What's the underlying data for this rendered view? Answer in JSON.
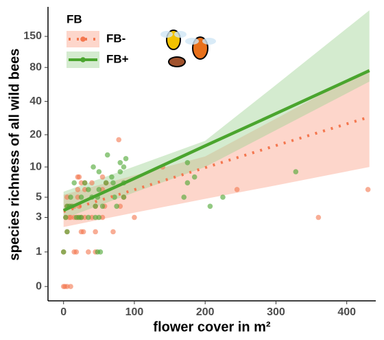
{
  "chart_data": {
    "type": "scatter",
    "x_label": "flower cover in m²",
    "y_label": "species richness of all wild bees",
    "xlim": [
      -22,
      441
    ],
    "ylim": [
      -0.25,
      272
    ],
    "yscale": "log1p",
    "xticks": [
      0,
      100,
      200,
      300,
      400
    ],
    "yticks": [
      0,
      1,
      3,
      5,
      10,
      20,
      40,
      80,
      150
    ],
    "legend": {
      "title": "FB",
      "position": "top-left"
    },
    "series": [
      {
        "name": "FB-",
        "color": "#f4774f",
        "band_color": "#fba58c",
        "line_style": "dotted",
        "x": [
          0,
          2,
          5,
          10,
          0,
          15,
          18,
          35,
          45,
          5,
          25,
          28,
          45,
          70,
          3,
          8,
          10,
          15,
          20,
          25,
          30,
          40,
          55,
          100,
          360,
          5,
          10,
          15,
          22,
          45,
          58,
          80,
          5,
          20,
          85,
          20,
          30,
          55,
          245,
          430,
          25,
          30,
          40,
          60,
          20,
          22,
          55,
          140,
          78
        ],
        "values": [
          0,
          0,
          0,
          0,
          1,
          1,
          1,
          1,
          1,
          2,
          2,
          2,
          2,
          2,
          3,
          3,
          3,
          3,
          3,
          3,
          3,
          3,
          3,
          3,
          3,
          4,
          4,
          4,
          4,
          4,
          4,
          4,
          5,
          5,
          5,
          6,
          6,
          6,
          6,
          6,
          7,
          7,
          7,
          7,
          8,
          8,
          8,
          10,
          18
        ],
        "fit": {
          "x": [
            0,
            100,
            200,
            300,
            432
          ],
          "values": [
            3.5,
            5.97,
            9.85,
            15.9,
            29
          ],
          "lower": [
            2.3,
            3.4,
            4.8,
            6.6,
            10
          ],
          "upper": [
            5.3,
            8.3,
            12.6,
            28,
            78
          ]
        }
      },
      {
        "name": "FB+",
        "color": "#4aa52e",
        "band_color": "#9fd394",
        "line_style": "solid",
        "x": [
          0,
          48,
          52,
          5,
          3,
          18,
          22,
          25,
          35,
          45,
          50,
          5,
          8,
          12,
          45,
          55,
          75,
          207,
          10,
          25,
          40,
          48,
          72,
          85,
          170,
          225,
          35,
          50,
          15,
          30,
          60,
          70,
          85,
          175,
          68,
          185,
          50,
          80,
          328,
          42,
          85,
          175,
          80,
          88,
          62
        ],
        "values": [
          1,
          1,
          1,
          2,
          3,
          3,
          3,
          3,
          3,
          3,
          3,
          4,
          4,
          4,
          4,
          4,
          4,
          4,
          5,
          5,
          5,
          5,
          5,
          5,
          5,
          5,
          6,
          6,
          7,
          7,
          7,
          7,
          7,
          7,
          8,
          8,
          9,
          9,
          9,
          10,
          10,
          11,
          11,
          12,
          13
        ],
        "fit": {
          "x": [
            0,
            100,
            200,
            300,
            432
          ],
          "values": [
            3.6,
            7.74,
            15.8,
            31.1,
            75
          ],
          "lower": [
            2.9,
            5.6,
            10,
            22,
            60
          ],
          "upper": [
            5.7,
            10.1,
            17.6,
            56,
            254
          ]
        }
      }
    ]
  }
}
